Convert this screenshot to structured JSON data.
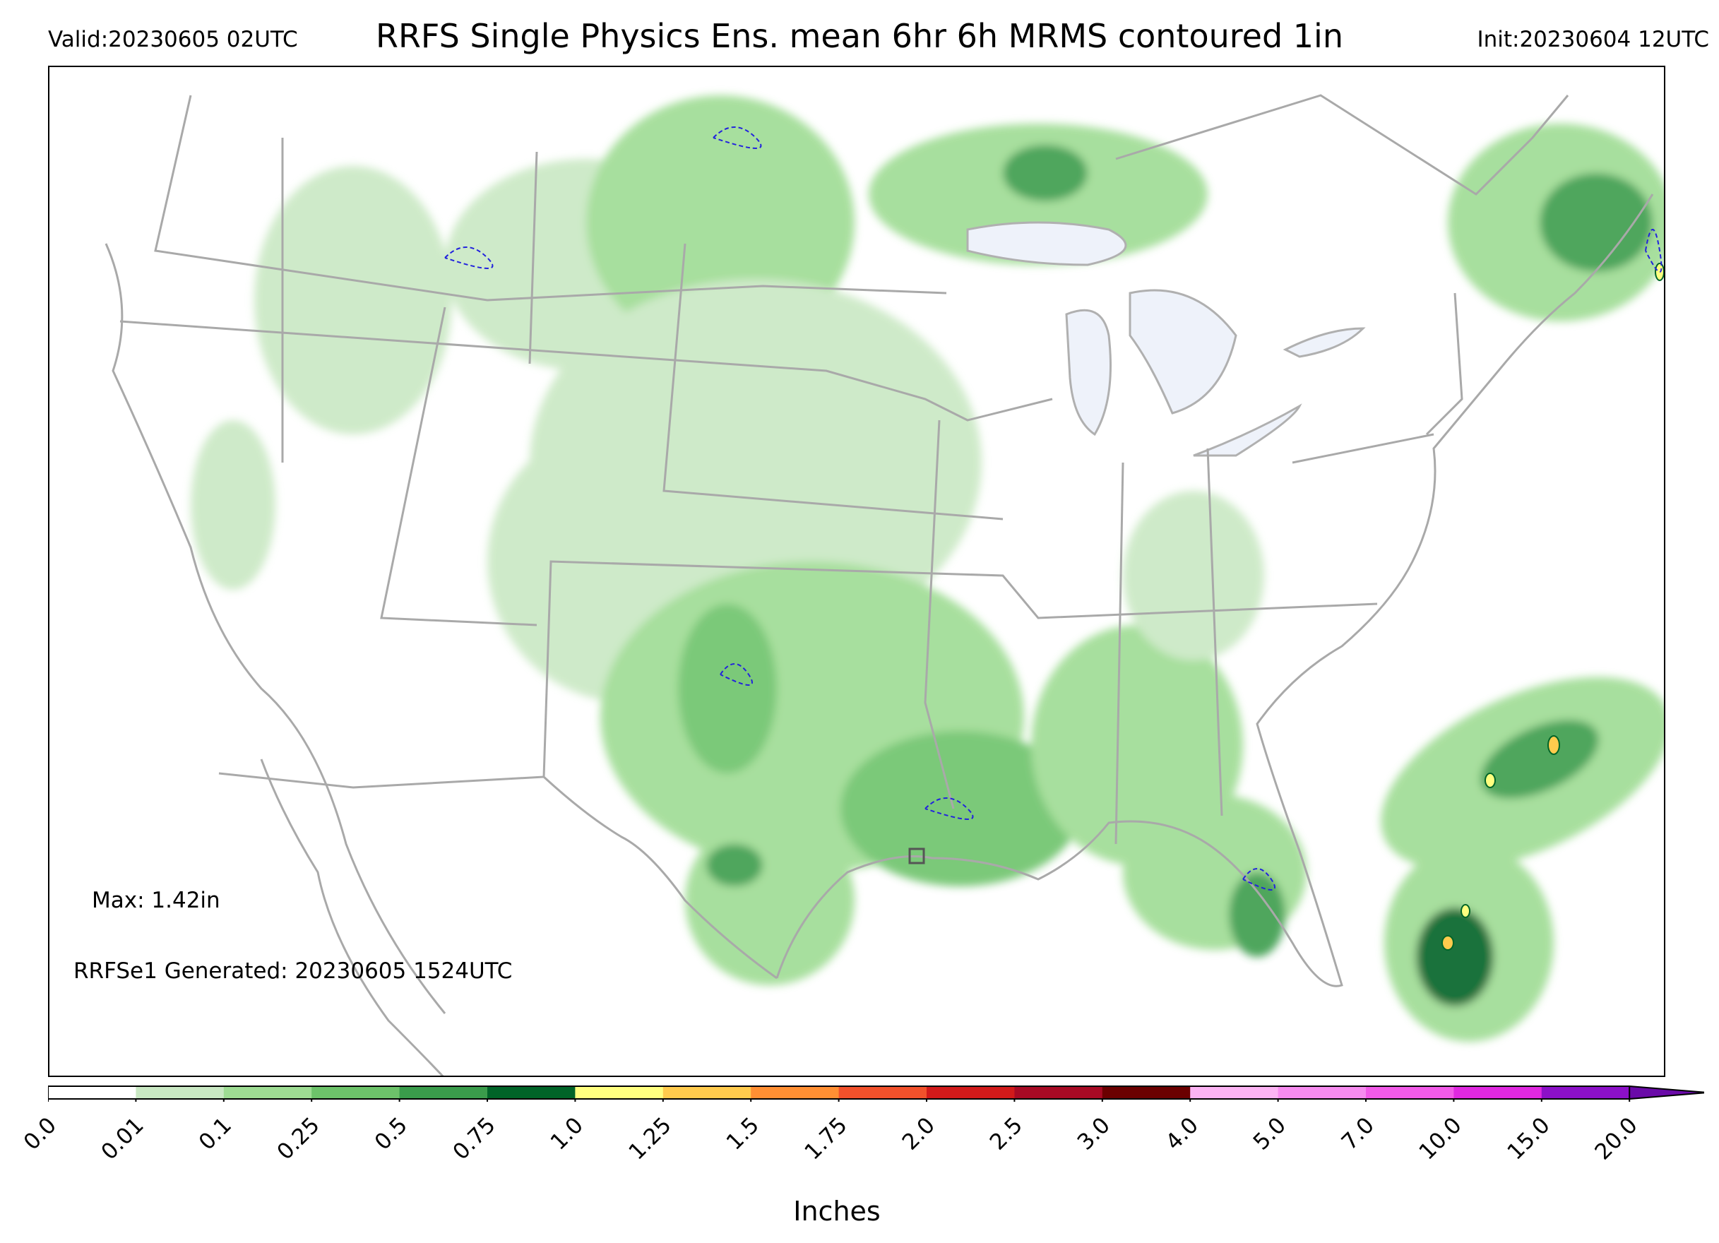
{
  "header": {
    "valid": "Valid:20230605 02UTC",
    "title": "RRFS Single Physics Ens. mean 6hr 6h MRMS contoured 1in",
    "init": "Init:20230604 12UTC"
  },
  "annotations": {
    "max": "Max: 1.42in",
    "generated": "RRFSe1 Generated: 20230605 1524UTC"
  },
  "colorbar": {
    "label": "Inches",
    "ticks": [
      "0.0",
      "0.01",
      "0.1",
      "0.25",
      "0.5",
      "0.75",
      "1.0",
      "1.25",
      "1.5",
      "1.75",
      "2.0",
      "2.5",
      "3.0",
      "4.0",
      "5.0",
      "7.0",
      "10.0",
      "15.0",
      "20.0"
    ],
    "colors": [
      "#ffffff",
      "#c9e8c3",
      "#9edc93",
      "#6dc36a",
      "#3a9c4b",
      "#006428",
      "#ffff80",
      "#ffcb4d",
      "#ff8f33",
      "#f2512b",
      "#d21a1a",
      "#a80a24",
      "#6b0000",
      "#fcb4f4",
      "#f78cf0",
      "#f25ae8",
      "#e028e0",
      "#8c10c8"
    ],
    "extend": "max"
  },
  "legend_colors": {
    "mrms_contour": "#2222dd",
    "land_boundaries": "#a9a9a9",
    "lakes": "#eef2fa"
  },
  "map": {
    "field": "6hr precipitation ensemble mean",
    "contour_overlay": "6h MRMS 1in",
    "max_value_in": 1.42
  }
}
